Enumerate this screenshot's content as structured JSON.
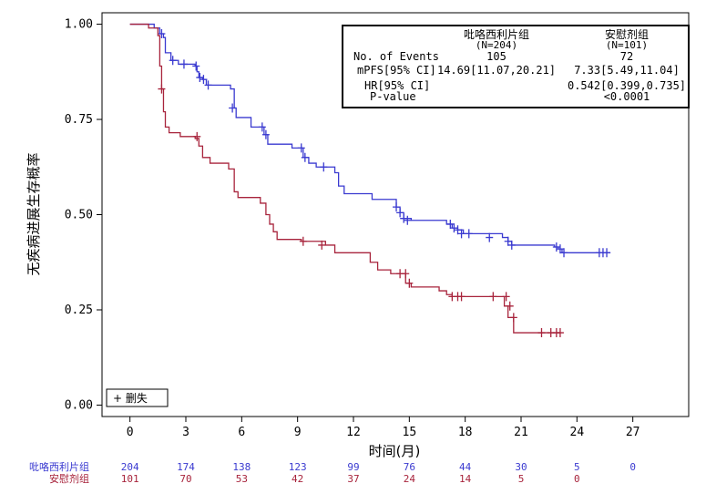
{
  "chart_data": {
    "type": "line",
    "title": "",
    "xlabel": "时间(月)",
    "ylabel": "无疾病进展生存概率",
    "xlim": [
      -1.5,
      30
    ],
    "ylim": [
      -0.03,
      1.03
    ],
    "x_ticks": [
      0,
      3,
      6,
      9,
      12,
      15,
      18,
      21,
      24,
      27
    ],
    "x_tick_labels": [
      "0",
      "3",
      "6",
      "9",
      "12",
      "15",
      "18",
      "21",
      "24",
      "27"
    ],
    "y_ticks": [
      0,
      0.25,
      0.5,
      0.75,
      1
    ],
    "y_tick_labels": [
      "0.00",
      "0.25",
      "0.50",
      "0.75",
      "1.00"
    ],
    "grid": false,
    "legend": {
      "placement": "bottom-left",
      "label": "+ 删失"
    },
    "series": [
      {
        "name": "吡咯西利片组",
        "color": "#3a3ad0",
        "steps": [
          [
            0,
            1
          ],
          [
            1,
            1
          ],
          [
            1.3,
            0.99
          ],
          [
            1.6,
            0.975
          ],
          [
            1.8,
            0.965
          ],
          [
            1.9,
            0.925
          ],
          [
            2.2,
            0.905
          ],
          [
            2.6,
            0.895
          ],
          [
            3.5,
            0.89
          ],
          [
            3.6,
            0.875
          ],
          [
            3.7,
            0.86
          ],
          [
            3.9,
            0.855
          ],
          [
            4.1,
            0.84
          ],
          [
            5.4,
            0.83
          ],
          [
            5.6,
            0.78
          ],
          [
            5.7,
            0.755
          ],
          [
            6.5,
            0.73
          ],
          [
            7.2,
            0.71
          ],
          [
            7.4,
            0.685
          ],
          [
            8.7,
            0.675
          ],
          [
            9.3,
            0.65
          ],
          [
            9.6,
            0.635
          ],
          [
            10.0,
            0.625
          ],
          [
            11.0,
            0.61
          ],
          [
            11.2,
            0.575
          ],
          [
            11.5,
            0.555
          ],
          [
            13.0,
            0.54
          ],
          [
            14.3,
            0.52
          ],
          [
            14.5,
            0.505
          ],
          [
            14.7,
            0.49
          ],
          [
            15.1,
            0.485
          ],
          [
            17.0,
            0.475
          ],
          [
            17.3,
            0.465
          ],
          [
            17.6,
            0.46
          ],
          [
            17.9,
            0.45
          ],
          [
            20.0,
            0.44
          ],
          [
            20.3,
            0.43
          ],
          [
            20.5,
            0.42
          ],
          [
            22.8,
            0.415
          ],
          [
            23.0,
            0.41
          ],
          [
            23.2,
            0.4
          ]
        ],
        "end_x": 25.8,
        "censored": [
          [
            1.7,
            0.975
          ],
          [
            2.3,
            0.905
          ],
          [
            2.9,
            0.895
          ],
          [
            3.55,
            0.89
          ],
          [
            3.75,
            0.86
          ],
          [
            3.95,
            0.855
          ],
          [
            4.2,
            0.84
          ],
          [
            5.5,
            0.78
          ],
          [
            7.1,
            0.73
          ],
          [
            7.3,
            0.71
          ],
          [
            9.2,
            0.675
          ],
          [
            9.4,
            0.65
          ],
          [
            10.4,
            0.625
          ],
          [
            14.3,
            0.52
          ],
          [
            14.5,
            0.505
          ],
          [
            14.7,
            0.49
          ],
          [
            14.9,
            0.485
          ],
          [
            17.2,
            0.475
          ],
          [
            17.4,
            0.465
          ],
          [
            17.6,
            0.46
          ],
          [
            17.8,
            0.45
          ],
          [
            18.2,
            0.45
          ],
          [
            19.3,
            0.44
          ],
          [
            20.3,
            0.43
          ],
          [
            20.5,
            0.42
          ],
          [
            22.9,
            0.415
          ],
          [
            23.1,
            0.41
          ],
          [
            23.3,
            0.4
          ],
          [
            25.2,
            0.4
          ],
          [
            25.4,
            0.4
          ],
          [
            25.6,
            0.4
          ]
        ]
      },
      {
        "name": "安慰剂组",
        "color": "#a8243c",
        "steps": [
          [
            0,
            1
          ],
          [
            1.0,
            0.99
          ],
          [
            1.5,
            0.97
          ],
          [
            1.6,
            0.89
          ],
          [
            1.7,
            0.83
          ],
          [
            1.8,
            0.77
          ],
          [
            1.9,
            0.73
          ],
          [
            2.1,
            0.715
          ],
          [
            2.7,
            0.705
          ],
          [
            3.5,
            0.7
          ],
          [
            3.7,
            0.68
          ],
          [
            3.9,
            0.65
          ],
          [
            4.3,
            0.635
          ],
          [
            5.3,
            0.62
          ],
          [
            5.6,
            0.56
          ],
          [
            5.8,
            0.545
          ],
          [
            7.0,
            0.53
          ],
          [
            7.3,
            0.5
          ],
          [
            7.5,
            0.475
          ],
          [
            7.7,
            0.455
          ],
          [
            7.9,
            0.435
          ],
          [
            9.2,
            0.43
          ],
          [
            10.5,
            0.42
          ],
          [
            11.0,
            0.4
          ],
          [
            12.9,
            0.375
          ],
          [
            13.3,
            0.355
          ],
          [
            14.0,
            0.345
          ],
          [
            14.8,
            0.32
          ],
          [
            15.1,
            0.31
          ],
          [
            16.6,
            0.3
          ],
          [
            17.0,
            0.29
          ],
          [
            17.3,
            0.285
          ],
          [
            20.1,
            0.26
          ],
          [
            20.3,
            0.23
          ],
          [
            20.6,
            0.19
          ]
        ],
        "end_x": 23.1,
        "censored": [
          [
            1.7,
            0.83
          ],
          [
            3.6,
            0.705
          ],
          [
            9.3,
            0.43
          ],
          [
            10.3,
            0.42
          ],
          [
            14.5,
            0.345
          ],
          [
            14.8,
            0.345
          ],
          [
            15.0,
            0.32
          ],
          [
            17.3,
            0.285
          ],
          [
            17.6,
            0.285
          ],
          [
            17.8,
            0.285
          ],
          [
            19.5,
            0.285
          ],
          [
            20.2,
            0.285
          ],
          [
            20.4,
            0.26
          ],
          [
            20.6,
            0.23
          ],
          [
            22.1,
            0.19
          ],
          [
            22.6,
            0.19
          ],
          [
            22.9,
            0.19
          ],
          [
            23.1,
            0.19
          ]
        ]
      }
    ]
  },
  "stats_box": {
    "header_blue": "吡咯西利片组",
    "header_blue_n": "(N=204)",
    "header_red": "安慰剂组",
    "header_red_n": "(N=101)",
    "row1_label": "No. of Events",
    "row1_blue": "105",
    "row1_red": "72",
    "row2_label": "mPFS[95% CI]",
    "row2_blue": "14.69[11.07,20.21]",
    "row2_red": "7.33[5.49,11.04]",
    "row3_label": "HR[95% CI]",
    "row3_red": "0.542[0.399,0.735]",
    "row4_label": "P-value",
    "row4_red": "<0.0001"
  },
  "risk_table": {
    "rows": [
      {
        "name": "吡咯西利片组",
        "color": "#3a3ad0",
        "values": [
          "204",
          "174",
          "138",
          "123",
          "99",
          "76",
          "44",
          "30",
          "5",
          "0"
        ]
      },
      {
        "name": "安慰剂组",
        "color": "#a8243c",
        "values": [
          "101",
          "70",
          "53",
          "42",
          "37",
          "24",
          "14",
          "5",
          "0",
          ""
        ]
      }
    ]
  }
}
